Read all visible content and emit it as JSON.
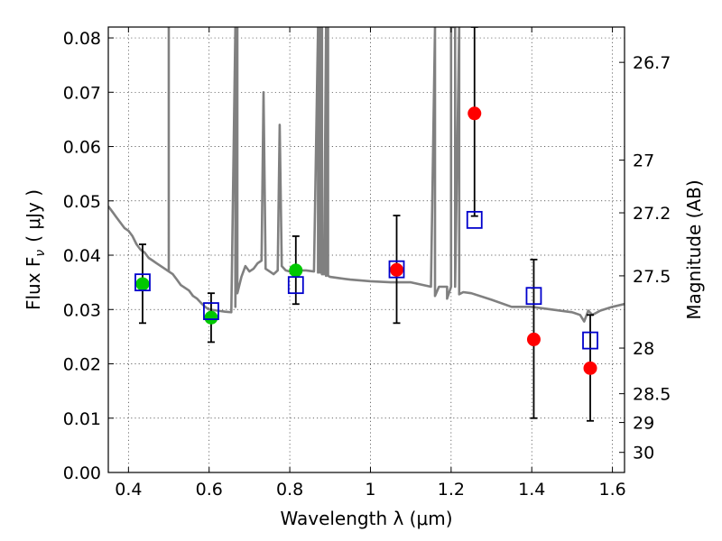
{
  "chart_data": {
    "type": "scatter",
    "xlabel": "Wavelength  λ (μm)",
    "ylabel": "Flux  F",
    "ylabel_sub": "ν",
    "ylabel_unit": "( μJy )",
    "y2label": "Magnitude (AB)",
    "xlim": [
      0.35,
      1.63
    ],
    "ylim": [
      0.0,
      0.082
    ],
    "x_ticks": [
      0.4,
      0.6,
      0.8,
      1.0,
      1.2,
      1.4,
      1.6
    ],
    "x_tick_labels": [
      "0.4",
      "0.6",
      "0.8",
      "1",
      "1.2",
      "1.4",
      "1.6"
    ],
    "y_ticks": [
      0.0,
      0.01,
      0.02,
      0.03,
      0.04,
      0.05,
      0.06,
      0.07,
      0.08
    ],
    "y_tick_labels": [
      "0.00",
      "0.01",
      "0.02",
      "0.03",
      "0.04",
      "0.05",
      "0.06",
      "0.07",
      "0.08"
    ],
    "mag_ticks": [
      {
        "label": "26.7",
        "flux": 0.0755
      },
      {
        "label": "27",
        "flux": 0.0575
      },
      {
        "label": "27.2",
        "flux": 0.0478
      },
      {
        "label": "27.5",
        "flux": 0.0362
      },
      {
        "label": "28",
        "flux": 0.0229
      },
      {
        "label": "28.5",
        "flux": 0.0145
      },
      {
        "label": "29",
        "flux": 0.0092
      },
      {
        "label": "30",
        "flux": 0.0037
      }
    ],
    "grid": true,
    "colors": {
      "spectrum": "#808080",
      "green_points": "#00c800",
      "red_points": "#ff0000",
      "model_squares": "#0000cc",
      "error_bars": "#000000"
    },
    "spectrum": {
      "x": [
        0.35,
        0.36,
        0.37,
        0.38,
        0.39,
        0.4,
        0.41,
        0.42,
        0.43,
        0.44,
        0.45,
        0.46,
        0.47,
        0.48,
        0.49,
        0.5,
        0.5,
        0.5,
        0.51,
        0.52,
        0.53,
        0.54,
        0.55,
        0.56,
        0.57,
        0.58,
        0.59,
        0.6,
        0.62,
        0.64,
        0.655,
        0.665,
        0.665,
        0.67,
        0.67,
        0.68,
        0.69,
        0.7,
        0.71,
        0.72,
        0.73,
        0.735,
        0.74,
        0.75,
        0.76,
        0.77,
        0.775,
        0.78,
        0.79,
        0.8,
        0.82,
        0.84,
        0.86,
        0.87,
        0.87,
        0.875,
        0.875,
        0.88,
        0.88,
        0.885,
        0.89,
        0.89,
        0.895,
        0.895,
        0.9,
        0.92,
        0.95,
        1.0,
        1.05,
        1.1,
        1.15,
        1.16,
        1.16,
        1.17,
        1.19,
        1.19,
        1.2,
        1.2,
        1.21,
        1.21,
        1.22,
        1.22,
        1.23,
        1.25,
        1.3,
        1.35,
        1.4,
        1.45,
        1.5,
        1.52,
        1.53,
        1.54,
        1.55,
        1.57,
        1.6,
        1.63
      ],
      "y": [
        0.049,
        0.048,
        0.047,
        0.046,
        0.045,
        0.0445,
        0.0435,
        0.042,
        0.041,
        0.0405,
        0.0395,
        0.039,
        0.0385,
        0.038,
        0.0375,
        0.037,
        0.082,
        0.037,
        0.0365,
        0.0355,
        0.0345,
        0.034,
        0.0335,
        0.0325,
        0.032,
        0.0312,
        0.0305,
        0.03,
        0.0298,
        0.0296,
        0.0295,
        0.082,
        0.0305,
        0.082,
        0.033,
        0.036,
        0.038,
        0.037,
        0.0375,
        0.0385,
        0.039,
        0.07,
        0.0375,
        0.037,
        0.0365,
        0.0372,
        0.064,
        0.038,
        0.0372,
        0.037,
        0.0372,
        0.0372,
        0.037,
        0.082,
        0.0368,
        0.082,
        0.0368,
        0.082,
        0.0365,
        0.0365,
        0.082,
        0.0362,
        0.082,
        0.0362,
        0.036,
        0.0358,
        0.0355,
        0.0352,
        0.035,
        0.035,
        0.0342,
        0.082,
        0.0325,
        0.0342,
        0.0342,
        0.032,
        0.0342,
        0.082,
        0.082,
        0.0342,
        0.082,
        0.0328,
        0.0332,
        0.033,
        0.0318,
        0.0305,
        0.0305,
        0.03,
        0.0295,
        0.029,
        0.0278,
        0.0298,
        0.029,
        0.0298,
        0.0305,
        0.031
      ]
    },
    "series": [
      {
        "marker": "circle",
        "color": "#00c800",
        "x": [
          0.435,
          0.605,
          0.815
        ],
        "y": [
          0.0347,
          0.0285,
          0.0372
        ]
      },
      {
        "marker": "circle",
        "color": "#ff0000",
        "x": [
          1.065,
          1.258,
          1.405,
          1.545
        ],
        "y": [
          0.0373,
          0.0661,
          0.0245,
          0.0192
        ]
      },
      {
        "marker": "square-open",
        "color": "#0000cc",
        "x": [
          0.435,
          0.605,
          0.815,
          1.065,
          1.258,
          1.405,
          1.545
        ],
        "y": [
          0.035,
          0.0297,
          0.0345,
          0.0374,
          0.0465,
          0.0325,
          0.0243
        ]
      }
    ],
    "error_bars": [
      {
        "x": 0.435,
        "y": 0.0347,
        "low": 0.0275,
        "high": 0.042
      },
      {
        "x": 0.605,
        "y": 0.0285,
        "low": 0.024,
        "high": 0.033
      },
      {
        "x": 0.815,
        "y": 0.0372,
        "low": 0.031,
        "high": 0.0435
      },
      {
        "x": 1.065,
        "y": 0.0373,
        "low": 0.0275,
        "high": 0.0473
      },
      {
        "x": 1.258,
        "y": 0.0661,
        "low": 0.0472,
        "high": 0.082
      },
      {
        "x": 1.405,
        "y": 0.0245,
        "low": 0.01,
        "high": 0.0392
      },
      {
        "x": 1.545,
        "y": 0.0192,
        "low": 0.0095,
        "high": 0.029
      }
    ]
  }
}
